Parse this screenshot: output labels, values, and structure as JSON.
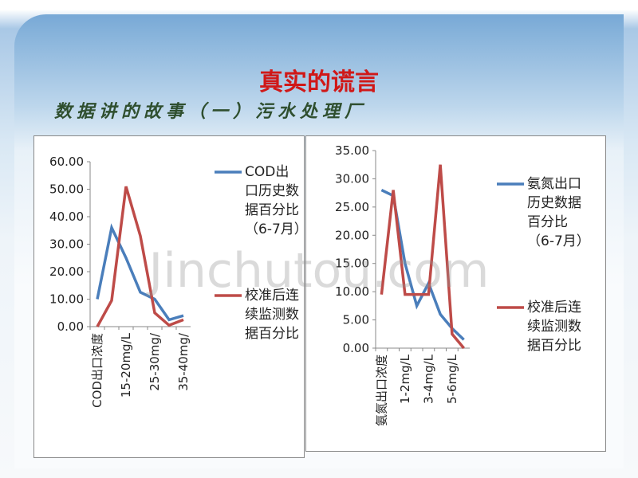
{
  "slide": {
    "title": "真实的谎言",
    "subtitle": "数据讲的故事（一）污水处理厂",
    "watermark": "Jinchutou.com"
  },
  "chart_data": [
    {
      "type": "line",
      "categories": [
        "COD出口浓度",
        null,
        "15-20mg/L",
        null,
        "25-30mg/",
        null,
        "35-40mg/"
      ],
      "series": [
        {
          "name": "COD出口历史数据百分比（6-7月）",
          "color": "#4a7ebb",
          "values": [
            10,
            36,
            25,
            12.5,
            10,
            2.5,
            4
          ]
        },
        {
          "name": "校准后连续监测数据百分比",
          "color": "#be4b48",
          "values": [
            0,
            9.5,
            51,
            33,
            5,
            0.5,
            2.5
          ]
        }
      ],
      "ylim": [
        0,
        60
      ],
      "yticks": [
        {
          "value": 0,
          "label": "0.00"
        },
        {
          "value": 10,
          "label": "10.00"
        },
        {
          "value": 20,
          "label": "20.00"
        },
        {
          "value": 30,
          "label": "30.00"
        },
        {
          "value": 40,
          "label": "40.00"
        },
        {
          "value": 50,
          "label": "50.00"
        },
        {
          "value": 60,
          "label": "60.00"
        }
      ],
      "legend": "right"
    },
    {
      "type": "line",
      "categories": [
        "氨氮出口浓度",
        null,
        "1-2mg/L",
        null,
        "3-4mg/L",
        null,
        "5-6mg/L",
        null
      ],
      "series": [
        {
          "name": "氨氮出口历史数据百分比（6-7月）",
          "color": "#4a7ebb",
          "values": [
            28,
            27,
            15,
            7.5,
            11.5,
            6,
            3.5,
            1.5
          ]
        },
        {
          "name": "校准后连续监测数据百分比",
          "color": "#be4b48",
          "values": [
            9.5,
            28,
            9.5,
            9.5,
            9.5,
            32.5,
            2.5,
            0
          ]
        }
      ],
      "ylim": [
        0,
        35
      ],
      "yticks": [
        {
          "value": 0,
          "label": "0.00"
        },
        {
          "value": 5,
          "label": "5.00"
        },
        {
          "value": 10,
          "label": "10.00"
        },
        {
          "value": 15,
          "label": "15.00"
        },
        {
          "value": 20,
          "label": "20.00"
        },
        {
          "value": 25,
          "label": "25.00"
        },
        {
          "value": 30,
          "label": "30.00"
        },
        {
          "value": 35,
          "label": "35.00"
        }
      ],
      "legend": "right"
    }
  ]
}
